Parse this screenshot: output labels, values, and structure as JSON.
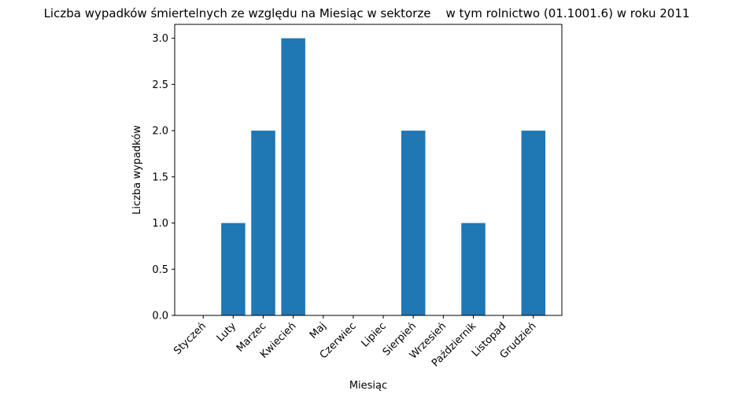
{
  "chart_data": {
    "type": "bar",
    "title": "Liczba wypadków śmiertelnych ze względu na Miesiąc w sektorze    w tym rolnictwo (01.1001.6) w roku 2011",
    "xlabel": "Miesiąc",
    "ylabel": "Liczba wypadków",
    "categories": [
      "Styczeń",
      "Luty",
      "Marzec",
      "Kwiecień",
      "Maj",
      "Czerwiec",
      "Lipiec",
      "Sierpień",
      "Wrzesień",
      "Październik",
      "Listopad",
      "Grudzień"
    ],
    "values": [
      0,
      1,
      2,
      3,
      0,
      0,
      0,
      2,
      0,
      1,
      0,
      2
    ],
    "ylim": [
      0,
      3.15
    ],
    "yticks": [
      "0.0",
      "0.5",
      "1.0",
      "1.5",
      "2.0",
      "2.5",
      "3.0"
    ],
    "grid": false,
    "colors": {
      "bar": "#1f77b4",
      "axis": "#000000"
    }
  }
}
